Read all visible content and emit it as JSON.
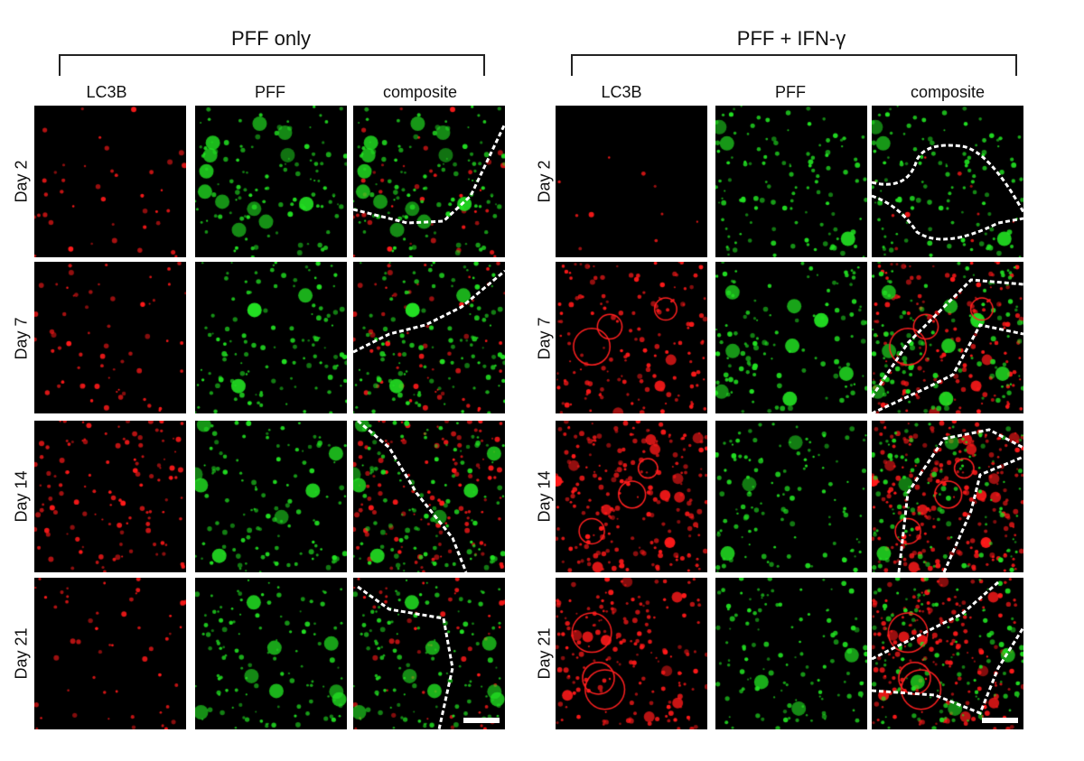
{
  "groups": [
    {
      "title": "PFF only",
      "columns": [
        "LC3B",
        "PFF",
        "composite"
      ],
      "rows": [
        "Day 2",
        "Day 7",
        "Day 14",
        "Day 21"
      ]
    },
    {
      "title": "PFF + IFN-γ",
      "columns": [
        "LC3B",
        "PFF",
        "composite"
      ],
      "rows": [
        "Day 2",
        "Day 7",
        "Day 14",
        "Day 21"
      ]
    }
  ],
  "channel_colors": {
    "LC3B": "#ff1a1a",
    "PFF": "#22e022"
  },
  "outline_style": "white dashed cell outline on composite panels",
  "scale_bar": "white bar, bottom-right of Day 21 composite panels"
}
